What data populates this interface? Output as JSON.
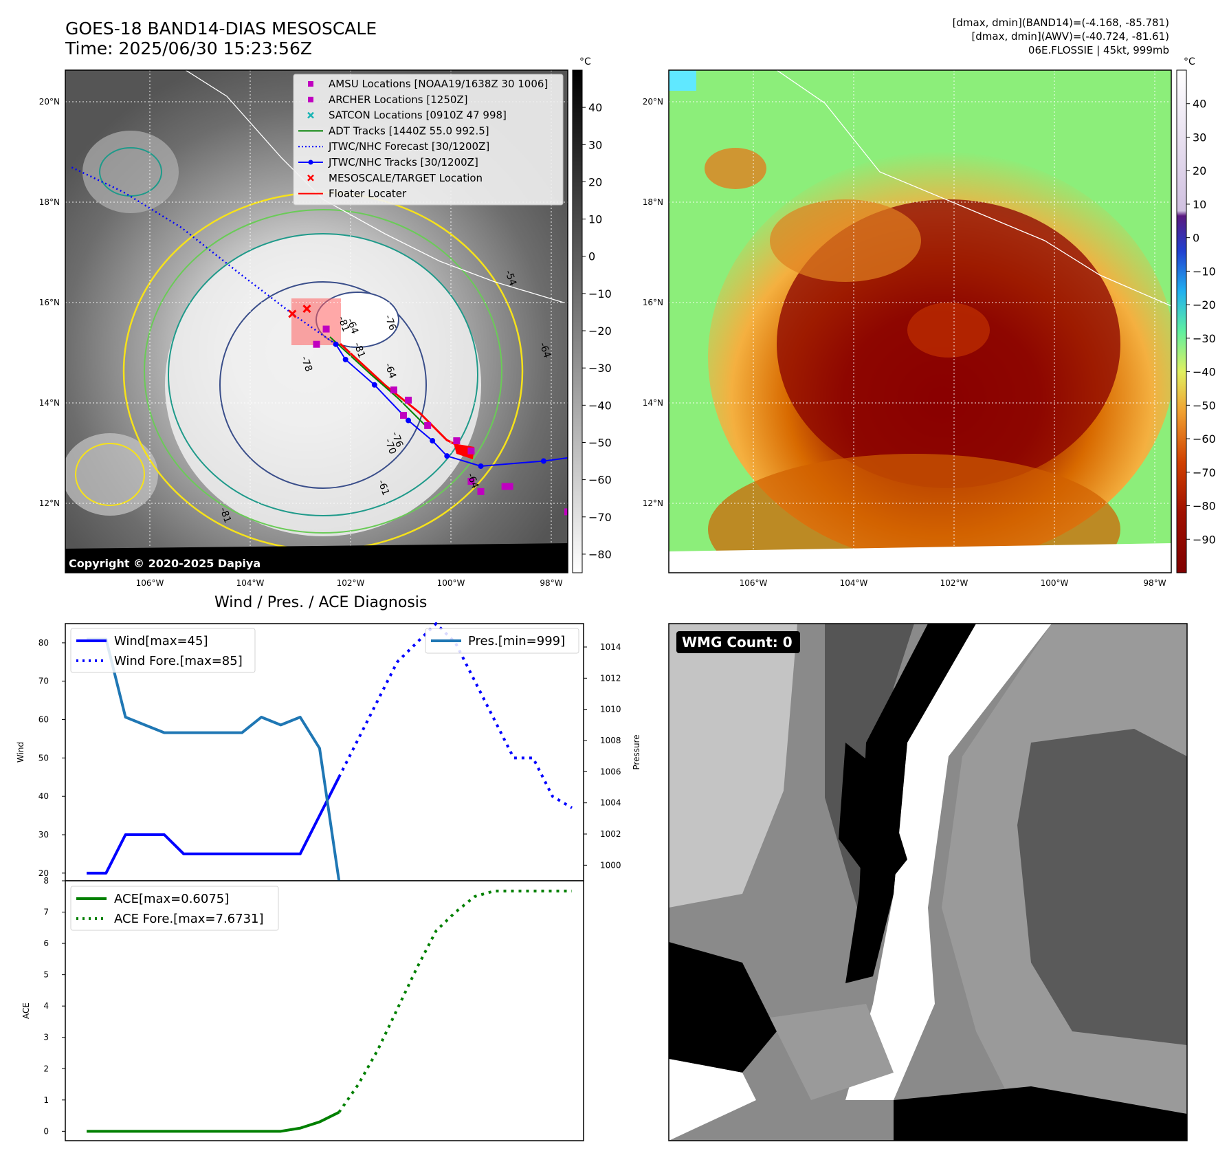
{
  "header": {
    "title_line1": "GOES-18 BAND14-DIAS MESOSCALE",
    "title_line2": "Time: 2025/06/30 15:23:56Z",
    "info_line1": "[dmax, dmin](BAND14)=(-4.168, -85.781)",
    "info_line2": "[dmax, dmin](AWV)=(-40.724, -81.61)",
    "info_line3": "06E.FLOSSIE | 45kt, 999mb"
  },
  "ir_map": {
    "lat_labels": [
      "20°N",
      "18°N",
      "16°N",
      "14°N",
      "12°N"
    ],
    "lon_labels": [
      "106°W",
      "104°W",
      "102°W",
      "100°W",
      "98°W"
    ],
    "colorbar_unit": "°C",
    "colorbar_ticks": [
      "40",
      "30",
      "20",
      "10",
      "0",
      "−10",
      "−20",
      "−30",
      "−40",
      "−50",
      "−60",
      "−70",
      "−80"
    ],
    "contour_labels": [
      "-64",
      "-76",
      "-81",
      "-54",
      "-64",
      "-81",
      "-70",
      "-78",
      "-64",
      "-76",
      "-64",
      "-61",
      "-81"
    ],
    "copyright": "Copyright © 2020-2025 Dapiya",
    "legend": [
      {
        "label": "AMSU Locations [NOAA19/1638Z 30 1006]",
        "marker": "square",
        "color": "#c000c0"
      },
      {
        "label": "ARCHER Locations [1250Z]",
        "marker": "square",
        "color": "#c000c0"
      },
      {
        "label": "SATCON Locations [0910Z 47 998]",
        "marker": "x",
        "color": "#1ab5b5"
      },
      {
        "label": "ADT Tracks [1440Z 55.0 992.5]",
        "marker": "line",
        "color": "#008000"
      },
      {
        "label": "JTWC/NHC Forecast [30/1200Z]",
        "marker": "dotted",
        "color": "#0000ff"
      },
      {
        "label": "JTWC/NHC Tracks [30/1200Z]",
        "marker": "line-dot",
        "color": "#0000ff"
      },
      {
        "label": "MESOSCALE/TARGET Location",
        "marker": "x",
        "color": "#ff0000"
      },
      {
        "label": "Floater Locater",
        "marker": "line",
        "color": "#ff0000"
      }
    ],
    "jtwc_track": [
      [
        -97.0,
        13.1
      ],
      [
        -97.8,
        13.0
      ],
      [
        -99.1,
        12.9
      ],
      [
        -99.8,
        13.1
      ],
      [
        -100.1,
        13.4
      ],
      [
        -100.6,
        13.8
      ],
      [
        -101.3,
        14.5
      ],
      [
        -101.9,
        15.0
      ],
      [
        -102.1,
        15.3
      ]
    ],
    "jtwc_forecast": [
      [
        -102.1,
        15.3
      ],
      [
        -103.0,
        15.9
      ],
      [
        -104.1,
        16.7
      ],
      [
        -105.3,
        17.6
      ],
      [
        -106.5,
        18.3
      ],
      [
        -107.6,
        18.8
      ]
    ],
    "amsu_points": [
      [
        -100.9,
        14.4
      ],
      [
        -100.6,
        14.2
      ],
      [
        -100.7,
        13.9
      ],
      [
        -100.2,
        13.7
      ],
      [
        -99.6,
        13.4
      ],
      [
        -99.3,
        13.2
      ],
      [
        -99.3,
        12.6
      ],
      [
        -99.1,
        12.4
      ],
      [
        -98.6,
        12.5
      ],
      [
        -98.5,
        12.5
      ],
      [
        -97.3,
        12.0
      ],
      [
        -102.3,
        15.6
      ],
      [
        -102.5,
        15.3
      ]
    ],
    "target_marks": [
      [
        -102.7,
        16.0
      ],
      [
        -103.0,
        15.9
      ]
    ],
    "colors": {
      "ocean_green": "#7ef07e",
      "cold_red": "#8a0000"
    }
  },
  "awv_map": {
    "lat_labels": [
      "20°N",
      "18°N",
      "16°N",
      "14°N",
      "12°N"
    ],
    "lon_labels": [
      "106°W",
      "104°W",
      "102°W",
      "100°W",
      "98°W"
    ],
    "colorbar_unit": "°C",
    "colorbar_ticks": [
      "40",
      "30",
      "20",
      "10",
      "0",
      "−10",
      "−20",
      "−30",
      "−40",
      "−50",
      "−60",
      "−70",
      "−80",
      "−90"
    ]
  },
  "diagnosis": {
    "title": "Wind / Pres. / ACE Diagnosis",
    "wind_ylabel": "Wind",
    "pres_ylabel": "Pressure",
    "ace_ylabel": "ACE",
    "wind_ticks": [
      "80",
      "70",
      "60",
      "50",
      "40",
      "30",
      "20"
    ],
    "pres_ticks": [
      "1014",
      "1012",
      "1010",
      "1008",
      "1006",
      "1004",
      "1002",
      "1000"
    ],
    "ace_ticks": [
      "8",
      "7",
      "6",
      "5",
      "4",
      "3",
      "2",
      "1",
      "0"
    ],
    "legend_wind": "Wind[max=45]",
    "legend_wind_fore": "Wind Fore.[max=85]",
    "legend_pres": "Pres.[min=999]",
    "legend_ace": "ACE[max=0.6075]",
    "legend_ace_fore": "ACE Fore.[max=7.6731]"
  },
  "wmg": {
    "count_label": "WMG Count: 0"
  },
  "chart_data": [
    {
      "type": "line",
      "title": "Wind / Pres. / ACE Diagnosis",
      "ylabel": "Wind",
      "ylim": [
        18,
        85
      ],
      "series": [
        {
          "name": "Wind[max=45]",
          "axis": "wind",
          "style": "solid",
          "color": "#0000ff",
          "x": [
            0,
            1,
            2,
            3,
            4,
            5,
            6,
            7,
            8,
            9,
            10,
            11,
            12,
            13
          ],
          "values": [
            20,
            20,
            30,
            30,
            30,
            25,
            25,
            25,
            25,
            25,
            25,
            25,
            35,
            45
          ]
        },
        {
          "name": "Wind Fore.[max=85]",
          "axis": "wind",
          "style": "dotted",
          "color": "#0000ff",
          "x": [
            13,
            14,
            15,
            16,
            17,
            18,
            19,
            20,
            21,
            22,
            23,
            24,
            25
          ],
          "values": [
            45,
            55,
            65,
            75,
            80,
            85,
            80,
            70,
            60,
            50,
            50,
            40,
            37
          ]
        },
        {
          "name": "Pres.[min=999]",
          "axis": "pressure",
          "style": "solid",
          "color": "#1f77b4",
          "x": [
            0,
            1,
            2,
            3,
            4,
            5,
            6,
            7,
            8,
            9,
            10,
            11,
            12,
            13
          ],
          "values": [
            1014.5,
            1014.5,
            1009.5,
            1009,
            1008.5,
            1008.5,
            1008.5,
            1008.5,
            1008.5,
            1009.5,
            1009,
            1009.5,
            1007.5,
            999
          ]
        }
      ],
      "y2label": "Pressure",
      "y2lim": [
        999,
        1015.5
      ]
    },
    {
      "type": "line",
      "ylabel": "ACE",
      "ylim": [
        -0.3,
        8
      ],
      "series": [
        {
          "name": "ACE[max=0.6075]",
          "style": "solid",
          "color": "#008000",
          "x": [
            0,
            1,
            2,
            3,
            4,
            5,
            6,
            7,
            8,
            9,
            10,
            11,
            12,
            13
          ],
          "values": [
            0,
            0,
            0,
            0,
            0,
            0,
            0,
            0,
            0,
            0,
            0,
            0.1,
            0.3,
            0.6075
          ]
        },
        {
          "name": "ACE Fore.[max=7.6731]",
          "style": "dotted",
          "color": "#008000",
          "x": [
            13,
            14,
            15,
            16,
            17,
            18,
            19,
            20,
            21,
            22,
            23,
            24,
            25
          ],
          "values": [
            0.6075,
            1.5,
            2.6,
            3.9,
            5.2,
            6.4,
            7.0,
            7.5,
            7.6731,
            7.6731,
            7.6731,
            7.6731,
            7.6731
          ]
        }
      ]
    }
  ]
}
